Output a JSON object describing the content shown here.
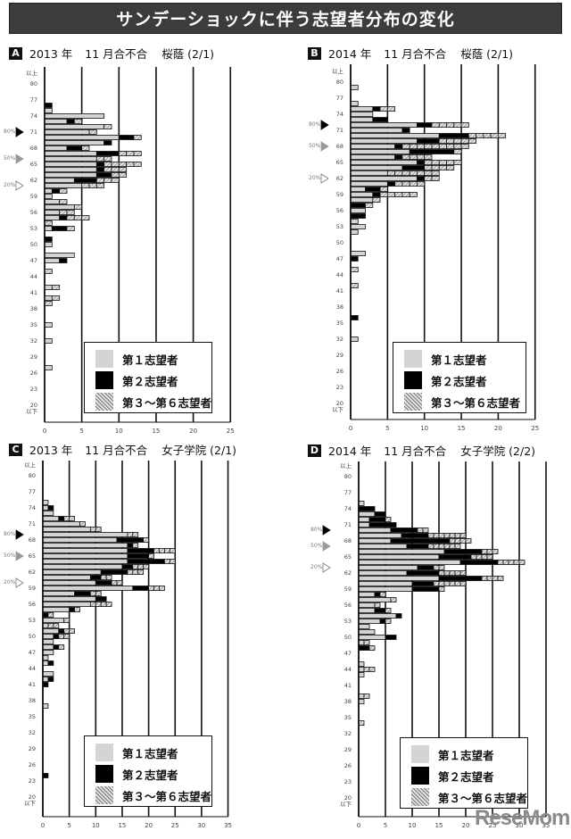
{
  "title": "サンデーショックに伴う志望者分布の変化",
  "legend": {
    "first": "第１志望者",
    "second": "第２志望者",
    "third_to_sixth": "第３～第６志望者"
  },
  "colors": {
    "first": "#d4d4d4",
    "second": "#000000",
    "third_to_sixth": "hatched gray",
    "title_bar": "#3c3c3c"
  },
  "logo": "ReseMom",
  "chart_data": [
    {
      "type": "bar",
      "orientation": "horizontal",
      "stacked": true,
      "badge": "A",
      "year": "2013 年",
      "test": "11 月合不合",
      "school": "桜蔭 (2/1)",
      "xlim": [
        0,
        25
      ],
      "x_ticks": [
        "0",
        "5",
        "10",
        "15",
        "20",
        "25"
      ],
      "y_ticks": [
        "以上",
        "80",
        "77",
        "74",
        "71",
        "68",
        "65",
        "62",
        "59",
        "56",
        "53",
        "50",
        "47",
        "44",
        "41",
        "38",
        "35",
        "32",
        "29",
        "26",
        "23",
        "20",
        "以下"
      ],
      "markers": [
        {
          "label": "80%",
          "y": 71
        },
        {
          "label": "50%",
          "y": 66
        },
        {
          "label": "20%",
          "y": 61
        }
      ],
      "rows": [
        {
          "y": 76,
          "s1": 0,
          "s2": 1,
          "s3": 0
        },
        {
          "y": 75,
          "s1": 1,
          "s2": 0,
          "s3": 0
        },
        {
          "y": 74,
          "s1": 8,
          "s2": 0,
          "s3": 0
        },
        {
          "y": 73,
          "s1": 3,
          "s2": 1,
          "s3": 1
        },
        {
          "y": 72,
          "s1": 8,
          "s2": 0,
          "s3": 1
        },
        {
          "y": 71,
          "s1": 6,
          "s2": 0,
          "s3": 1
        },
        {
          "y": 70,
          "s1": 10,
          "s2": 2,
          "s3": 1
        },
        {
          "y": 69,
          "s1": 8,
          "s2": 1,
          "s3": 0
        },
        {
          "y": 68,
          "s1": 3,
          "s2": 2,
          "s3": 1
        },
        {
          "y": 67,
          "s1": 7,
          "s2": 3,
          "s3": 3
        },
        {
          "y": 66,
          "s1": 7,
          "s2": 0,
          "s3": 2
        },
        {
          "y": 65,
          "s1": 7,
          "s2": 1,
          "s3": 5
        },
        {
          "y": 64,
          "s1": 7,
          "s2": 1,
          "s3": 3
        },
        {
          "y": 63,
          "s1": 7,
          "s2": 2,
          "s3": 2
        },
        {
          "y": 62,
          "s1": 4,
          "s2": 3,
          "s3": 3
        },
        {
          "y": 61,
          "s1": 5,
          "s2": 0,
          "s3": 3
        },
        {
          "y": 60,
          "s1": 1,
          "s2": 1,
          "s3": 1
        },
        {
          "y": 59,
          "s1": 1,
          "s2": 0,
          "s3": 0
        },
        {
          "y": 58,
          "s1": 2,
          "s2": 0,
          "s3": 1
        },
        {
          "y": 57,
          "s1": 4,
          "s2": 0,
          "s3": 1
        },
        {
          "y": 56,
          "s1": 2,
          "s2": 0,
          "s3": 2
        },
        {
          "y": 55,
          "s1": 2,
          "s2": 1,
          "s3": 3
        },
        {
          "y": 54,
          "s1": 0,
          "s2": 0,
          "s3": 1
        },
        {
          "y": 53,
          "s1": 1,
          "s2": 2,
          "s3": 1
        },
        {
          "y": 51,
          "s1": 0,
          "s2": 1,
          "s3": 0
        },
        {
          "y": 50,
          "s1": 1,
          "s2": 0,
          "s3": 0
        },
        {
          "y": 48,
          "s1": 4,
          "s2": 0,
          "s3": 0
        },
        {
          "y": 47,
          "s1": 2,
          "s2": 1,
          "s3": 0
        },
        {
          "y": 45,
          "s1": 0,
          "s2": 0,
          "s3": 1
        },
        {
          "y": 42,
          "s1": 1,
          "s2": 0,
          "s3": 1
        },
        {
          "y": 40,
          "s1": 1,
          "s2": 0,
          "s3": 1
        },
        {
          "y": 39,
          "s1": 0,
          "s2": 0,
          "s3": 1
        },
        {
          "y": 35,
          "s1": 1,
          "s2": 0,
          "s3": 0
        },
        {
          "y": 32,
          "s1": 1,
          "s2": 0,
          "s3": 0
        },
        {
          "y": 27,
          "s1": 1,
          "s2": 0,
          "s3": 0
        }
      ]
    },
    {
      "type": "bar",
      "orientation": "horizontal",
      "stacked": true,
      "badge": "B",
      "year": "2014 年",
      "test": "11 月合不合",
      "school": "桜蔭 (2/1)",
      "xlim": [
        0,
        25
      ],
      "x_ticks": [
        "0",
        "5",
        "10",
        "15",
        "20",
        "25"
      ],
      "y_ticks": [
        "以上",
        "80",
        "77",
        "74",
        "71",
        "68",
        "65",
        "62",
        "59",
        "56",
        "53",
        "50",
        "47",
        "44",
        "41",
        "38",
        "35",
        "32",
        "29",
        "26",
        "23",
        "20",
        "以下"
      ],
      "markers": [
        {
          "label": "80%",
          "y": 72
        },
        {
          "label": "50%",
          "y": 68
        },
        {
          "label": "20%",
          "y": 62
        }
      ],
      "rows": [
        {
          "y": 79,
          "s1": 1,
          "s2": 0,
          "s3": 0
        },
        {
          "y": 76,
          "s1": 1,
          "s2": 0,
          "s3": 0
        },
        {
          "y": 75,
          "s1": 3,
          "s2": 1,
          "s3": 2
        },
        {
          "y": 74,
          "s1": 3,
          "s2": 0,
          "s3": 0
        },
        {
          "y": 73,
          "s1": 3,
          "s2": 2,
          "s3": 0
        },
        {
          "y": 72,
          "s1": 9,
          "s2": 2,
          "s3": 5
        },
        {
          "y": 71,
          "s1": 7,
          "s2": 1,
          "s3": 0
        },
        {
          "y": 70,
          "s1": 12,
          "s2": 4,
          "s3": 5
        },
        {
          "y": 69,
          "s1": 9,
          "s2": 3,
          "s3": 5
        },
        {
          "y": 68,
          "s1": 6,
          "s2": 1,
          "s3": 9
        },
        {
          "y": 67,
          "s1": 8,
          "s2": 6,
          "s3": 1
        },
        {
          "y": 66,
          "s1": 6,
          "s2": 1,
          "s3": 4
        },
        {
          "y": 65,
          "s1": 9,
          "s2": 1,
          "s3": 5
        },
        {
          "y": 64,
          "s1": 7,
          "s2": 3,
          "s3": 4
        },
        {
          "y": 63,
          "s1": 5,
          "s2": 0,
          "s3": 7
        },
        {
          "y": 62,
          "s1": 9,
          "s2": 1,
          "s3": 2
        },
        {
          "y": 61,
          "s1": 5,
          "s2": 1,
          "s3": 4
        },
        {
          "y": 60,
          "s1": 2,
          "s2": 2,
          "s3": 1
        },
        {
          "y": 59,
          "s1": 3,
          "s2": 1,
          "s3": 5
        },
        {
          "y": 58,
          "s1": 3,
          "s2": 0,
          "s3": 1
        },
        {
          "y": 57,
          "s1": 0,
          "s2": 2,
          "s3": 1
        },
        {
          "y": 56,
          "s1": 2,
          "s2": 0,
          "s3": 0
        },
        {
          "y": 55,
          "s1": 0,
          "s2": 2,
          "s3": 0
        },
        {
          "y": 54,
          "s1": 1,
          "s2": 0,
          "s3": 0
        },
        {
          "y": 53,
          "s1": 2,
          "s2": 0,
          "s3": 0
        },
        {
          "y": 52,
          "s1": 1,
          "s2": 0,
          "s3": 0
        },
        {
          "y": 48,
          "s1": 2,
          "s2": 0,
          "s3": 0
        },
        {
          "y": 47,
          "s1": 0,
          "s2": 1,
          "s3": 0
        },
        {
          "y": 45,
          "s1": 0,
          "s2": 0,
          "s3": 1
        },
        {
          "y": 42,
          "s1": 0,
          "s2": 0,
          "s3": 1
        },
        {
          "y": 36,
          "s1": 0,
          "s2": 1,
          "s3": 0
        },
        {
          "y": 32,
          "s1": 1,
          "s2": 0,
          "s3": 0
        }
      ]
    },
    {
      "type": "bar",
      "orientation": "horizontal",
      "stacked": true,
      "badge": "C",
      "year": "2013 年",
      "test": "11 月合不合",
      "school": "女子学院 (2/1)",
      "xlim": [
        0,
        35
      ],
      "x_ticks": [
        "0",
        "5",
        "10",
        "15",
        "20",
        "25",
        "30",
        "35"
      ],
      "y_ticks": [
        "以上",
        "80",
        "77",
        "74",
        "71",
        "68",
        "65",
        "62",
        "59",
        "56",
        "53",
        "50",
        "47",
        "44",
        "41",
        "38",
        "35",
        "32",
        "29",
        "26",
        "23",
        "20",
        "以下"
      ],
      "markers": [
        {
          "label": "80%",
          "y": 69
        },
        {
          "label": "50%",
          "y": 65
        },
        {
          "label": "20%",
          "y": 60
        }
      ],
      "rows": [
        {
          "y": 75,
          "s1": 1,
          "s2": 0,
          "s3": 0
        },
        {
          "y": 74,
          "s1": 1,
          "s2": 1,
          "s3": 0
        },
        {
          "y": 73,
          "s1": 2,
          "s2": 0,
          "s3": 0
        },
        {
          "y": 72,
          "s1": 3,
          "s2": 1,
          "s3": 2
        },
        {
          "y": 71,
          "s1": 7,
          "s2": 0,
          "s3": 1
        },
        {
          "y": 70,
          "s1": 9,
          "s2": 0,
          "s3": 2
        },
        {
          "y": 69,
          "s1": 16,
          "s2": 0,
          "s3": 2
        },
        {
          "y": 68,
          "s1": 14,
          "s2": 5,
          "s3": 1
        },
        {
          "y": 67,
          "s1": 16,
          "s2": 1,
          "s3": 1
        },
        {
          "y": 66,
          "s1": 16,
          "s2": 5,
          "s3": 4
        },
        {
          "y": 65,
          "s1": 16,
          "s2": 4,
          "s3": 1
        },
        {
          "y": 64,
          "s1": 16,
          "s2": 7,
          "s3": 2
        },
        {
          "y": 63,
          "s1": 15,
          "s2": 2,
          "s3": 3
        },
        {
          "y": 62,
          "s1": 11,
          "s2": 5,
          "s3": 3
        },
        {
          "y": 61,
          "s1": 9,
          "s2": 2,
          "s3": 2
        },
        {
          "y": 60,
          "s1": 10,
          "s2": 3,
          "s3": 2
        },
        {
          "y": 59,
          "s1": 17,
          "s2": 3,
          "s3": 3
        },
        {
          "y": 58,
          "s1": 6,
          "s2": 3,
          "s3": 2
        },
        {
          "y": 57,
          "s1": 10,
          "s2": 2,
          "s3": 0
        },
        {
          "y": 56,
          "s1": 9,
          "s2": 0,
          "s3": 4
        },
        {
          "y": 55,
          "s1": 5,
          "s2": 1,
          "s3": 1
        },
        {
          "y": 54,
          "s1": 0,
          "s2": 1,
          "s3": 1
        },
        {
          "y": 53,
          "s1": 4,
          "s2": 0,
          "s3": 1
        },
        {
          "y": 52,
          "s1": 1,
          "s2": 0,
          "s3": 2
        },
        {
          "y": 51,
          "s1": 3,
          "s2": 1,
          "s3": 2
        },
        {
          "y": 50,
          "s1": 2,
          "s2": 1,
          "s3": 2
        },
        {
          "y": 49,
          "s1": 2,
          "s2": 0,
          "s3": 0
        },
        {
          "y": 48,
          "s1": 2,
          "s2": 1,
          "s3": 1
        },
        {
          "y": 47,
          "s1": 2,
          "s2": 0,
          "s3": 0
        },
        {
          "y": 46,
          "s1": 1,
          "s2": 0,
          "s3": 0
        },
        {
          "y": 45,
          "s1": 1,
          "s2": 1,
          "s3": 0
        },
        {
          "y": 43,
          "s1": 2,
          "s2": 0,
          "s3": 0
        },
        {
          "y": 42,
          "s1": 1,
          "s2": 1,
          "s3": 0
        },
        {
          "y": 41,
          "s1": 0,
          "s2": 1,
          "s3": 0
        },
        {
          "y": 37,
          "s1": 1,
          "s2": 0,
          "s3": 0
        },
        {
          "y": 24,
          "s1": 0,
          "s2": 1,
          "s3": 0
        }
      ]
    },
    {
      "type": "bar",
      "orientation": "horizontal",
      "stacked": true,
      "badge": "D",
      "year": "2014 年",
      "test": "11 月合不合",
      "school": "女子学院 (2/2)",
      "xlim": [
        0,
        35
      ],
      "x_ticks": [
        "0",
        "5",
        "10",
        "15",
        "20",
        "25",
        "30",
        "35"
      ],
      "y_ticks": [
        "以上",
        "80",
        "77",
        "74",
        "71",
        "68",
        "65",
        "62",
        "59",
        "56",
        "53",
        "50",
        "47",
        "44",
        "41",
        "38",
        "35",
        "32",
        "29",
        "26",
        "23",
        "20",
        "以下"
      ],
      "markers": [
        {
          "label": "80%",
          "y": 70
        },
        {
          "label": "50%",
          "y": 67
        },
        {
          "label": "20%",
          "y": 63
        }
      ],
      "rows": [
        {
          "y": 75,
          "s1": 1,
          "s2": 0,
          "s3": 0
        },
        {
          "y": 74,
          "s1": 0,
          "s2": 3,
          "s3": 0
        },
        {
          "y": 73,
          "s1": 3,
          "s2": 2,
          "s3": 0
        },
        {
          "y": 72,
          "s1": 2,
          "s2": 3,
          "s3": 1
        },
        {
          "y": 71,
          "s1": 2,
          "s2": 5,
          "s3": 0
        },
        {
          "y": 70,
          "s1": 6,
          "s2": 5,
          "s3": 2
        },
        {
          "y": 69,
          "s1": 8,
          "s2": 5,
          "s3": 7
        },
        {
          "y": 68,
          "s1": 6,
          "s2": 11,
          "s3": 4
        },
        {
          "y": 67,
          "s1": 9,
          "s2": 4,
          "s3": 6
        },
        {
          "y": 66,
          "s1": 16,
          "s2": 7,
          "s3": 3
        },
        {
          "y": 65,
          "s1": 15,
          "s2": 6,
          "s3": 4
        },
        {
          "y": 64,
          "s1": 19,
          "s2": 7,
          "s3": 5
        },
        {
          "y": 63,
          "s1": 11,
          "s2": 3,
          "s3": 2
        },
        {
          "y": 62,
          "s1": 9,
          "s2": 6,
          "s3": 5
        },
        {
          "y": 61,
          "s1": 15,
          "s2": 8,
          "s3": 4
        },
        {
          "y": 60,
          "s1": 10,
          "s2": 4,
          "s3": 6
        },
        {
          "y": 59,
          "s1": 10,
          "s2": 5,
          "s3": 1
        },
        {
          "y": 58,
          "s1": 3,
          "s2": 1,
          "s3": 1
        },
        {
          "y": 57,
          "s1": 6,
          "s2": 0,
          "s3": 1
        },
        {
          "y": 56,
          "s1": 3,
          "s2": 0,
          "s3": 1
        },
        {
          "y": 55,
          "s1": 3,
          "s2": 2,
          "s3": 1
        },
        {
          "y": 54,
          "s1": 7,
          "s2": 1,
          "s3": 0
        },
        {
          "y": 53,
          "s1": 4,
          "s2": 1,
          "s3": 1
        },
        {
          "y": 52,
          "s1": 2,
          "s2": 0,
          "s3": 0
        },
        {
          "y": 51,
          "s1": 3,
          "s2": 0,
          "s3": 0
        },
        {
          "y": 50,
          "s1": 5,
          "s2": 2,
          "s3": 0
        },
        {
          "y": 49,
          "s1": 1,
          "s2": 0,
          "s3": 1
        },
        {
          "y": 48,
          "s1": 0,
          "s2": 2,
          "s3": 1
        },
        {
          "y": 45,
          "s1": 1,
          "s2": 0,
          "s3": 0
        },
        {
          "y": 44,
          "s1": 1,
          "s2": 0,
          "s3": 2
        },
        {
          "y": 43,
          "s1": 1,
          "s2": 0,
          "s3": 0
        },
        {
          "y": 39,
          "s1": 1,
          "s2": 0,
          "s3": 1
        },
        {
          "y": 38,
          "s1": 1,
          "s2": 0,
          "s3": 0
        },
        {
          "y": 34,
          "s1": 0,
          "s2": 0,
          "s3": 1
        }
      ]
    }
  ]
}
